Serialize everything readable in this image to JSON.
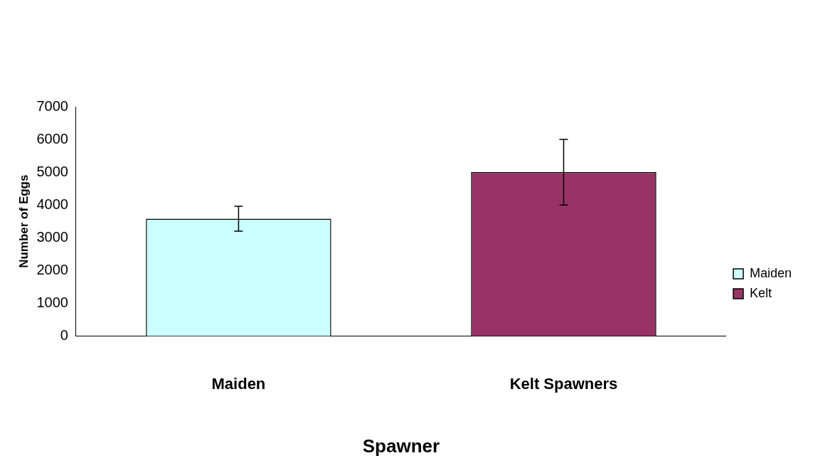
{
  "chart_data": {
    "type": "bar",
    "xlabel": "Spawner",
    "ylabel": "Number of Eggs",
    "categories": [
      "Maiden",
      "Kelt Spawners"
    ],
    "stacked": true,
    "series": [
      {
        "name": "Maiden",
        "color": "#ccffff",
        "values": [
          3580,
          null
        ],
        "errors": [
          380,
          null
        ]
      },
      {
        "name": "Kelt",
        "color": "#993366",
        "values": [
          null,
          5000
        ],
        "errors": [
          null,
          1000
        ]
      }
    ],
    "ylim": [
      0,
      7000
    ],
    "yticks": [
      0,
      1000,
      2000,
      3000,
      4000,
      5000,
      6000,
      7000
    ],
    "grid": false,
    "legend": "right"
  }
}
